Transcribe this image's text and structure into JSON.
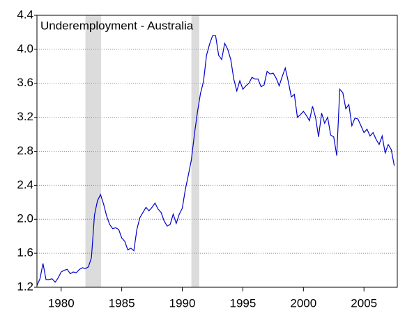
{
  "chart_data": {
    "type": "line",
    "title": "Underemployment - Australia",
    "x": [
      1978,
      1978.25,
      1978.5,
      1978.75,
      1979,
      1979.25,
      1979.5,
      1979.75,
      1980,
      1980.25,
      1980.5,
      1980.75,
      1981,
      1981.25,
      1981.5,
      1981.75,
      1982,
      1982.25,
      1982.5,
      1982.75,
      1983,
      1983.25,
      1983.5,
      1983.75,
      1984,
      1984.25,
      1984.5,
      1984.75,
      1985,
      1985.25,
      1985.5,
      1985.75,
      1986,
      1986.25,
      1986.5,
      1986.75,
      1987,
      1987.25,
      1987.5,
      1987.75,
      1988,
      1988.25,
      1988.5,
      1988.75,
      1989,
      1989.25,
      1989.5,
      1989.75,
      1990,
      1990.25,
      1990.5,
      1990.75,
      1991,
      1991.25,
      1991.5,
      1991.75,
      1992,
      1992.25,
      1992.5,
      1992.75,
      1993,
      1993.25,
      1993.5,
      1993.75,
      1994,
      1994.25,
      1994.5,
      1994.75,
      1995,
      1995.25,
      1995.5,
      1995.75,
      1996,
      1996.25,
      1996.5,
      1996.75,
      1997,
      1997.25,
      1997.5,
      1997.75,
      1998,
      1998.25,
      1998.5,
      1998.75,
      1999,
      1999.25,
      1999.5,
      1999.75,
      2000,
      2000.25,
      2000.5,
      2000.75,
      2001,
      2001.25,
      2001.5,
      2001.75,
      2002,
      2002.25,
      2002.5,
      2002.75,
      2003,
      2003.25,
      2003.5,
      2003.75,
      2004,
      2004.25,
      2004.5,
      2004.75,
      2005,
      2005.25,
      2005.5,
      2005.75,
      2006,
      2006.25,
      2006.5,
      2006.75,
      2007,
      2007.25,
      2007.5
    ],
    "series": [
      {
        "color": "#0000cc",
        "values": [
          1.22,
          1.3,
          1.48,
          1.29,
          1.29,
          1.3,
          1.26,
          1.31,
          1.38,
          1.4,
          1.41,
          1.36,
          1.38,
          1.37,
          1.41,
          1.43,
          1.42,
          1.44,
          1.55,
          2.05,
          2.22,
          2.29,
          2.18,
          2.04,
          1.94,
          1.89,
          1.9,
          1.88,
          1.78,
          1.74,
          1.64,
          1.66,
          1.63,
          1.88,
          2.02,
          2.08,
          2.14,
          2.1,
          2.14,
          2.19,
          2.12,
          2.08,
          1.98,
          1.92,
          1.94,
          2.06,
          1.95,
          2.06,
          2.13,
          2.35,
          2.52,
          2.7,
          3.0,
          3.26,
          3.48,
          3.62,
          3.93,
          4.06,
          4.16,
          4.16,
          3.93,
          3.88,
          4.07,
          4.0,
          3.88,
          3.65,
          3.51,
          3.63,
          3.53,
          3.57,
          3.6,
          3.67,
          3.65,
          3.65,
          3.56,
          3.58,
          3.74,
          3.71,
          3.72,
          3.66,
          3.57,
          3.68,
          3.78,
          3.62,
          3.44,
          3.47,
          3.2,
          3.23,
          3.27,
          3.22,
          3.16,
          3.33,
          3.2,
          2.97,
          3.25,
          3.13,
          3.2,
          2.99,
          2.97,
          2.75,
          3.53,
          3.49,
          3.3,
          3.35,
          3.1,
          3.19,
          3.18,
          3.1,
          3.02,
          3.06,
          2.98,
          3.02,
          2.94,
          2.88,
          2.98,
          2.78,
          2.88,
          2.82,
          2.63
        ]
      }
    ],
    "xlim": [
      1978,
      2007.75
    ],
    "xticks": [
      1980,
      1985,
      1990,
      1995,
      2000,
      2005
    ],
    "ylim": [
      1.2,
      4.4
    ],
    "yticks": [
      1.2,
      1.6,
      {
        "value": 2,
        "label": "2.0"
      },
      2.4,
      2.8,
      3.2,
      3.6,
      {
        "value": 4,
        "label": "4.0"
      },
      4.4
    ],
    "grid": true,
    "shaded_regions": [
      [
        1982,
        1983.3
      ],
      [
        1990.75,
        1991.4
      ]
    ],
    "shade_color": "#dcdcdc"
  }
}
